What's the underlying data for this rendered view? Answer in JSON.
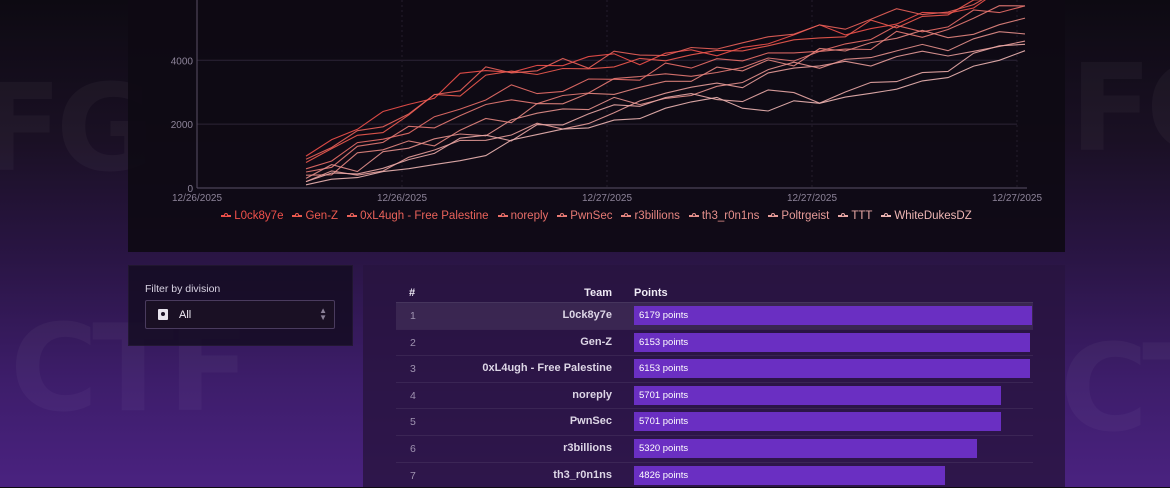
{
  "chart_data": {
    "type": "line",
    "x_tick_labels": [
      "12/26/2025",
      "12/26/2025",
      "12/27/2025",
      "12/27/2025",
      "12/27/2025"
    ],
    "y_ticks": [
      0,
      2000,
      4000
    ],
    "ylim": [
      0,
      6200
    ],
    "grid": true,
    "legend_position": "bottom",
    "series": [
      {
        "name": "L0ck8y7e",
        "color": "#f0504a",
        "values": [
          1000,
          3800,
          4100,
          5000,
          6179
        ]
      },
      {
        "name": "Gen-Z",
        "color": "#ee5a4f",
        "values": [
          800,
          3500,
          4000,
          4900,
          6153
        ]
      },
      {
        "name": "0xL4ugh - Free Palestine",
        "color": "#e9625a",
        "values": [
          900,
          3600,
          4300,
          5100,
          6153
        ]
      },
      {
        "name": "noreply",
        "color": "#e96e68",
        "values": [
          600,
          2900,
          3700,
          4600,
          5701
        ]
      },
      {
        "name": "PwnSec",
        "color": "#e77a74",
        "values": [
          500,
          2600,
          3500,
          4400,
          5701
        ]
      },
      {
        "name": "r3billions",
        "color": "#e68680",
        "values": [
          400,
          2000,
          3400,
          4300,
          5320
        ]
      },
      {
        "name": "th3_r0n1ns",
        "color": "#e6908c",
        "values": [
          300,
          1800,
          3000,
          4000,
          4826
        ]
      },
      {
        "name": "Poltrgeist",
        "color": "#e89c99",
        "values": [
          200,
          1500,
          2800,
          3900,
          4600
        ]
      },
      {
        "name": "TTT",
        "color": "#eaa8a6",
        "values": [
          200,
          1500,
          2800,
          2900,
          4500
        ]
      },
      {
        "name": "WhiteDukesDZ",
        "color": "#edb5b3",
        "values": [
          100,
          1200,
          2600,
          2700,
          4300
        ]
      }
    ]
  },
  "filter": {
    "label": "Filter by division",
    "selected": "All"
  },
  "table": {
    "headers": {
      "rank": "#",
      "team": "Team",
      "points": "Points"
    },
    "max_points": 6179,
    "rows": [
      {
        "rank": "1",
        "team": "L0ck8y7e",
        "points": 6179,
        "points_label": "6179 points"
      },
      {
        "rank": "2",
        "team": "Gen-Z",
        "points": 6153,
        "points_label": "6153 points"
      },
      {
        "rank": "3",
        "team": "0xL4ugh - Free Palestine",
        "points": 6153,
        "points_label": "6153 points"
      },
      {
        "rank": "4",
        "team": "noreply",
        "points": 5701,
        "points_label": "5701 points"
      },
      {
        "rank": "5",
        "team": "PwnSec",
        "points": 5701,
        "points_label": "5701 points"
      },
      {
        "rank": "6",
        "team": "r3billions",
        "points": 5320,
        "points_label": "5320 points"
      },
      {
        "rank": "7",
        "team": "th3_r0n1ns",
        "points": 4826,
        "points_label": "4826 points"
      }
    ]
  },
  "colors": {
    "accent": "#6a2fc2",
    "background_bottom": "#4a2280"
  }
}
